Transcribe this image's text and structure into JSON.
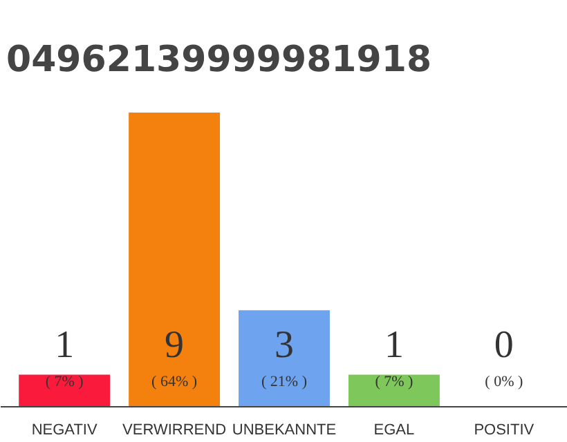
{
  "chart_data": {
    "type": "bar",
    "title": "04962139999981918",
    "categories": [
      "NEGATIV",
      "VERWIRREND",
      "UNBEKANNTE",
      "EGAL",
      "POSITIV"
    ],
    "values": [
      7,
      64,
      21,
      7,
      0
    ],
    "colors": [
      "#fa1b3c",
      "#f4800e",
      "#6ea3f0",
      "#7ec75a",
      "#efefef"
    ],
    "value_labels": [
      "( 7% )",
      "( 64% )",
      "( 21% )",
      "( 7% )",
      "( 0% )"
    ],
    "annotations": [
      "1",
      "9",
      "3",
      "1",
      "0"
    ]
  }
}
